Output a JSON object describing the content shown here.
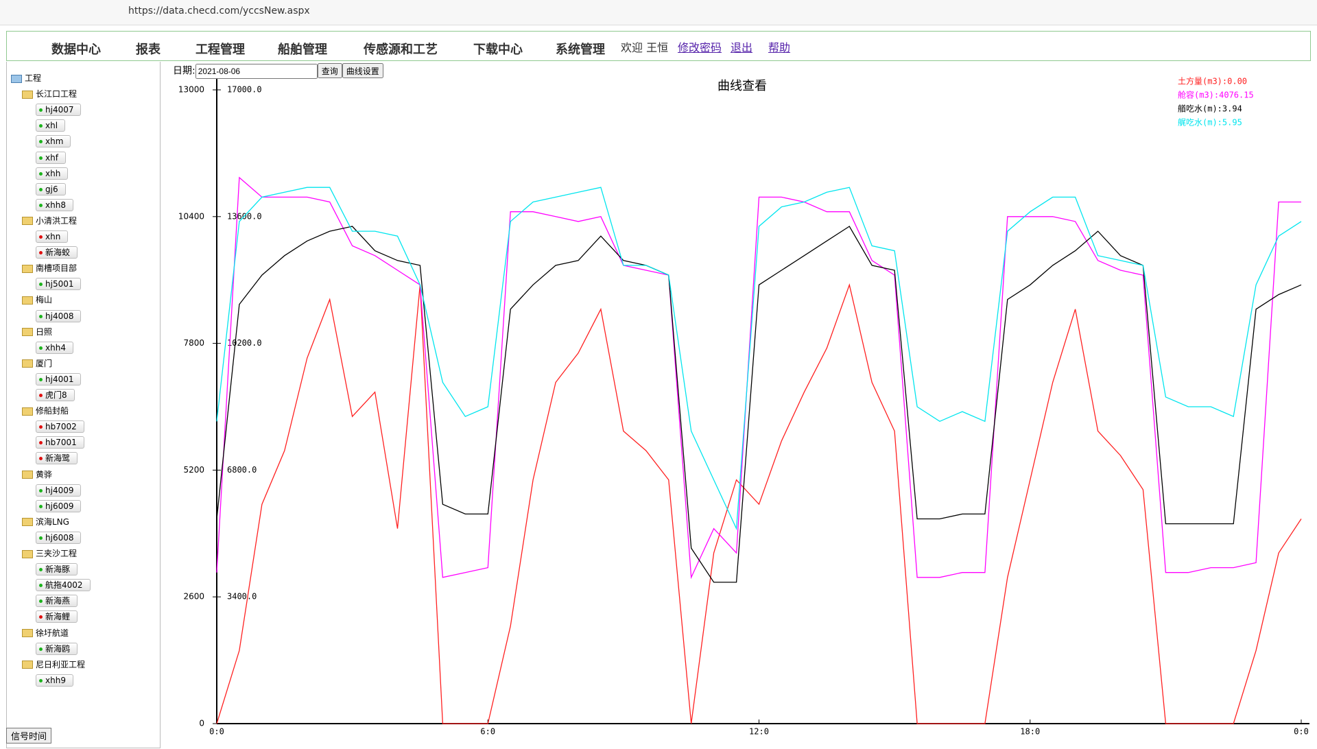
{
  "browser": {
    "url": "https://data.checd.com/yccsNew.aspx"
  },
  "nav": {
    "menu": [
      "数据中心",
      "报表",
      "工程管理",
      "船舶管理",
      "传感源和工艺",
      "下载中心",
      "系统管理"
    ],
    "welcome": "欢迎 王恒",
    "links": [
      "修改密码",
      "退出",
      "帮助"
    ]
  },
  "tree": {
    "root": "工程",
    "groups": [
      {
        "name": "长江口工程",
        "items": [
          {
            "label": "hj4007",
            "dot": "#1db31d"
          },
          {
            "label": "xhl",
            "dot": "#1db31d"
          },
          {
            "label": "xhm",
            "dot": "#1db31d"
          },
          {
            "label": "xhf",
            "dot": "#1db31d"
          },
          {
            "label": "xhh",
            "dot": "#1db31d"
          },
          {
            "label": "gj6",
            "dot": "#1db31d"
          },
          {
            "label": "xhh8",
            "dot": "#1db31d"
          }
        ]
      },
      {
        "name": "小清洪工程",
        "items": [
          {
            "label": "xhn",
            "dot": "#e01010"
          },
          {
            "label": "新海蛟",
            "dot": "#e01010"
          }
        ]
      },
      {
        "name": "南槽项目部",
        "items": [
          {
            "label": "hj5001",
            "dot": "#1db31d"
          }
        ]
      },
      {
        "name": "梅山",
        "items": [
          {
            "label": "hj4008",
            "dot": "#1db31d"
          }
        ]
      },
      {
        "name": "日照",
        "items": [
          {
            "label": "xhh4",
            "dot": "#1db31d"
          }
        ]
      },
      {
        "name": "厦门",
        "items": [
          {
            "label": "hj4001",
            "dot": "#1db31d"
          },
          {
            "label": "虎门8",
            "dot": "#e01010"
          }
        ]
      },
      {
        "name": "修船封船",
        "items": [
          {
            "label": "hb7002",
            "dot": "#e01010"
          },
          {
            "label": "hb7001",
            "dot": "#e01010"
          },
          {
            "label": "新海鹭",
            "dot": "#e01010"
          }
        ]
      },
      {
        "name": "黄骅",
        "items": [
          {
            "label": "hj4009",
            "dot": "#1db31d"
          },
          {
            "label": "hj6009",
            "dot": "#1db31d"
          }
        ]
      },
      {
        "name": "滨海LNG",
        "items": [
          {
            "label": "hj6008",
            "dot": "#1db31d"
          }
        ]
      },
      {
        "name": "三夹沙工程",
        "items": [
          {
            "label": "新海豚",
            "dot": "#1db31d"
          },
          {
            "label": "航拖4002",
            "dot": "#1db31d"
          },
          {
            "label": "新海燕",
            "dot": "#1db31d"
          },
          {
            "label": "新海鲤",
            "dot": "#e01010"
          }
        ]
      },
      {
        "name": "徐圩航道",
        "items": [
          {
            "label": "新海鸥",
            "dot": "#1db31d"
          }
        ]
      },
      {
        "name": "尼日利亚工程",
        "items": [
          {
            "label": "xhh9",
            "dot": "#1db31d"
          }
        ]
      }
    ],
    "button": "信号时间"
  },
  "query": {
    "date_label": "日期:",
    "date": "2021-08-06",
    "buttons": [
      "查询",
      "曲线设置"
    ]
  },
  "chart_data": {
    "type": "line",
    "title": "曲线查看",
    "x": [
      0,
      0.5,
      1,
      1.5,
      2,
      2.5,
      3,
      3.5,
      4,
      4.5,
      5,
      5.5,
      6,
      6.5,
      7,
      7.5,
      8,
      8.5,
      9,
      9.5,
      10,
      10.5,
      11,
      11.5,
      12,
      12.5,
      13,
      13.5,
      14,
      14.5,
      15,
      15.5,
      16,
      16.5,
      17,
      17.5,
      18,
      18.5,
      19,
      19.5,
      20,
      20.5,
      21,
      21.5,
      22,
      22.5,
      23,
      23.5,
      24
    ],
    "xlim": [
      0,
      24
    ],
    "xticks": [
      {
        "value": 0,
        "label": "0:0"
      },
      {
        "value": 6,
        "label": "6:0"
      },
      {
        "value": 12,
        "label": "12:0"
      },
      {
        "value": 18,
        "label": "18:0"
      },
      {
        "value": 24,
        "label": "0:0"
      }
    ],
    "ylim": [
      0,
      13000
    ],
    "yticks": [
      0,
      2600,
      5200,
      7800,
      10400,
      13000
    ],
    "y2lim": [
      0,
      17000
    ],
    "y2ticks": [
      {
        "value": 3400,
        "label": "3400.0"
      },
      {
        "value": 6800,
        "label": "6800.0"
      },
      {
        "value": 10200,
        "label": "10200.0"
      },
      {
        "value": 13600,
        "label": "13600.0"
      },
      {
        "value": 17000,
        "label": "17000.0"
      }
    ],
    "series": [
      {
        "name": "土方量(m3):0.00",
        "color": "#ff2020",
        "values": [
          0,
          1500,
          4500,
          5600,
          7500,
          8700,
          6300,
          6800,
          4000,
          9000,
          0,
          0,
          0,
          2000,
          5000,
          7000,
          7600,
          8500,
          6000,
          5600,
          5000,
          0,
          3500,
          5000,
          4500,
          5800,
          6800,
          7700,
          9000,
          7000,
          6000,
          0,
          0,
          0,
          0,
          3000,
          5000,
          7000,
          8500,
          6000,
          5500,
          4800,
          0,
          0,
          0,
          0,
          1500,
          3500,
          4200
        ]
      },
      {
        "name": "舱容(m3):4076.15",
        "color": "#ff00ff",
        "values": [
          3100,
          11200,
          10800,
          10800,
          10800,
          10700,
          9800,
          9600,
          9300,
          9000,
          3000,
          3100,
          3200,
          10500,
          10500,
          10400,
          10300,
          10400,
          9400,
          9300,
          9200,
          3000,
          4000,
          3500,
          10800,
          10800,
          10700,
          10500,
          10500,
          9500,
          9200,
          3000,
          3000,
          3100,
          3100,
          10400,
          10400,
          10400,
          10300,
          9500,
          9300,
          9200,
          3100,
          3100,
          3200,
          3200,
          3300,
          10700,
          10700
        ]
      },
      {
        "name": "艏吃水(m):3.94",
        "color": "#000000",
        "values": [
          4200,
          8600,
          9200,
          9600,
          9900,
          10100,
          10200,
          9700,
          9500,
          9400,
          4500,
          4300,
          4300,
          8500,
          9000,
          9400,
          9500,
          10000,
          9500,
          9400,
          9200,
          3600,
          2900,
          2900,
          9000,
          9300,
          9600,
          9900,
          10200,
          9400,
          9300,
          4200,
          4200,
          4300,
          4300,
          8700,
          9000,
          9400,
          9700,
          10100,
          9600,
          9400,
          4100,
          4100,
          4100,
          4100,
          8500,
          8800,
          9000
        ]
      },
      {
        "name": "艉吃水(m):5.95",
        "color": "#00e5ee",
        "values": [
          6200,
          10300,
          10800,
          10900,
          11000,
          11000,
          10100,
          10100,
          10000,
          9000,
          7000,
          6300,
          6500,
          10300,
          10700,
          10800,
          10900,
          11000,
          9400,
          9400,
          9200,
          6000,
          5000,
          4000,
          10200,
          10600,
          10700,
          10900,
          11000,
          9800,
          9700,
          6500,
          6200,
          6400,
          6200,
          10100,
          10500,
          10800,
          10800,
          9600,
          9500,
          9400,
          6700,
          6500,
          6500,
          6300,
          9000,
          10000,
          10300
        ]
      }
    ]
  }
}
